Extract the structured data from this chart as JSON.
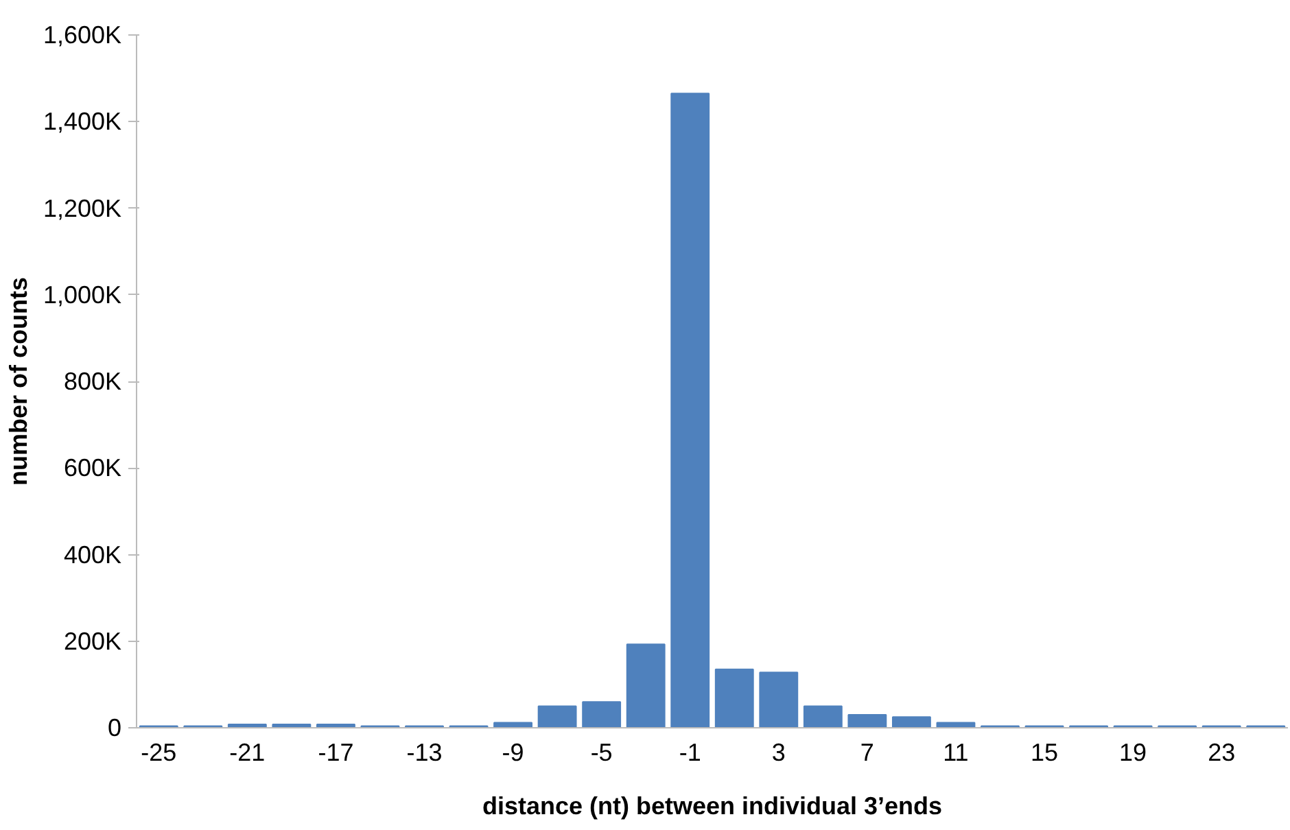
{
  "chart_data": {
    "type": "bar",
    "xlabel": "distance (nt) between individual 3’ends",
    "ylabel": "number of counts",
    "categories": [
      "-25",
      null,
      "-21",
      null,
      "-17",
      null,
      "-13",
      null,
      "-9",
      null,
      "-5",
      null,
      "-1",
      null,
      "3",
      null,
      "7",
      null,
      "11",
      null,
      "15",
      null,
      "19",
      null,
      "23",
      null
    ],
    "values": [
      4000,
      4000,
      8000,
      8000,
      8000,
      4000,
      4000,
      4000,
      12000,
      50000,
      60000,
      193000,
      1465000,
      135000,
      128000,
      50000,
      30000,
      25000,
      12000,
      4000,
      4000,
      4000,
      4000,
      4000,
      4000,
      4000
    ],
    "color": "#4f81bd",
    "ylim": [
      0,
      1600000
    ],
    "yticks": [
      0,
      {
        "value": 200000,
        "label": "200K"
      },
      {
        "value": 400000,
        "label": "400K"
      },
      {
        "value": 600000,
        "label": "600K"
      },
      {
        "value": 800000,
        "label": "800K"
      },
      {
        "value": 1000000,
        "label": "1,000K"
      },
      {
        "value": 1200000,
        "label": "1,200K"
      },
      {
        "value": 1400000,
        "label": "1,400K"
      },
      {
        "value": 1600000,
        "label": "1,600K"
      }
    ],
    "grid": false
  }
}
